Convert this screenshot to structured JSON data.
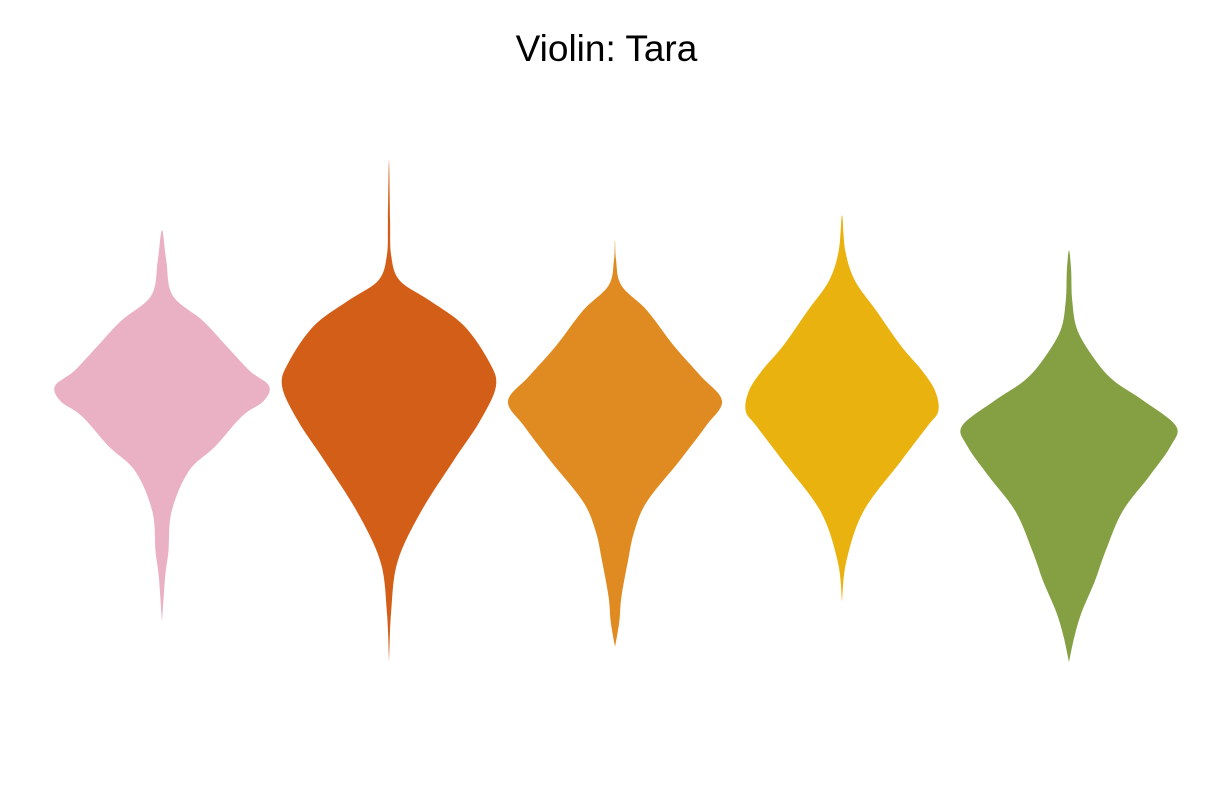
{
  "chart_data": {
    "type": "violin",
    "title": "Violin: Tara",
    "xlabel": "",
    "ylabel": "",
    "ylim": [
      0,
      100
    ],
    "grid": false,
    "legend": "none",
    "series": [
      {
        "color": "#EAB1C5",
        "profile": [
          [
            8,
            0
          ],
          [
            17,
            0.03
          ],
          [
            22,
            0.06
          ],
          [
            30,
            0.09
          ],
          [
            38,
            0.25
          ],
          [
            43,
            0.5
          ],
          [
            49,
            0.75
          ],
          [
            52,
            0.95
          ],
          [
            55,
            1.0
          ],
          [
            58,
            0.82
          ],
          [
            63,
            0.6
          ],
          [
            68,
            0.38
          ],
          [
            73,
            0.1
          ],
          [
            80,
            0.04
          ],
          [
            86,
            0
          ]
        ]
      },
      {
        "color": "#D35E18",
        "profile": [
          [
            0,
            0
          ],
          [
            10,
            0.02
          ],
          [
            20,
            0.08
          ],
          [
            30,
            0.3
          ],
          [
            40,
            0.6
          ],
          [
            48,
            0.85
          ],
          [
            55,
            1.0
          ],
          [
            60,
            0.93
          ],
          [
            67,
            0.7
          ],
          [
            72,
            0.38
          ],
          [
            76,
            0.1
          ],
          [
            81,
            0.02
          ],
          [
            88,
            0.01
          ],
          [
            100,
            0
          ]
        ]
      },
      {
        "color": "#E08B22",
        "profile": [
          [
            3,
            0
          ],
          [
            8,
            0.04
          ],
          [
            13,
            0.06
          ],
          [
            20,
            0.12
          ],
          [
            26,
            0.18
          ],
          [
            32,
            0.3
          ],
          [
            40,
            0.6
          ],
          [
            47,
            0.85
          ],
          [
            52,
            1.0
          ],
          [
            57,
            0.8
          ],
          [
            63,
            0.55
          ],
          [
            70,
            0.3
          ],
          [
            75,
            0.06
          ],
          [
            80,
            0.01
          ],
          [
            84,
            0
          ]
        ]
      },
      {
        "color": "#E9B20E",
        "profile": [
          [
            12,
            0
          ],
          [
            20,
            0.04
          ],
          [
            30,
            0.2
          ],
          [
            40,
            0.55
          ],
          [
            47,
            0.8
          ],
          [
            50,
            0.9
          ],
          [
            54,
            0.87
          ],
          [
            58,
            0.75
          ],
          [
            63,
            0.55
          ],
          [
            70,
            0.32
          ],
          [
            76,
            0.12
          ],
          [
            82,
            0.03
          ],
          [
            89,
            0
          ]
        ]
      },
      {
        "color": "#85A043",
        "profile": [
          [
            0,
            0
          ],
          [
            5,
            0.05
          ],
          [
            10,
            0.12
          ],
          [
            16,
            0.24
          ],
          [
            22,
            0.34
          ],
          [
            30,
            0.5
          ],
          [
            37,
            0.75
          ],
          [
            43,
            0.95
          ],
          [
            47,
            1.0
          ],
          [
            52,
            0.7
          ],
          [
            56,
            0.42
          ],
          [
            60,
            0.25
          ],
          [
            66,
            0.08
          ],
          [
            72,
            0.03
          ],
          [
            78,
            0.02
          ],
          [
            82,
            0
          ]
        ]
      }
    ]
  }
}
